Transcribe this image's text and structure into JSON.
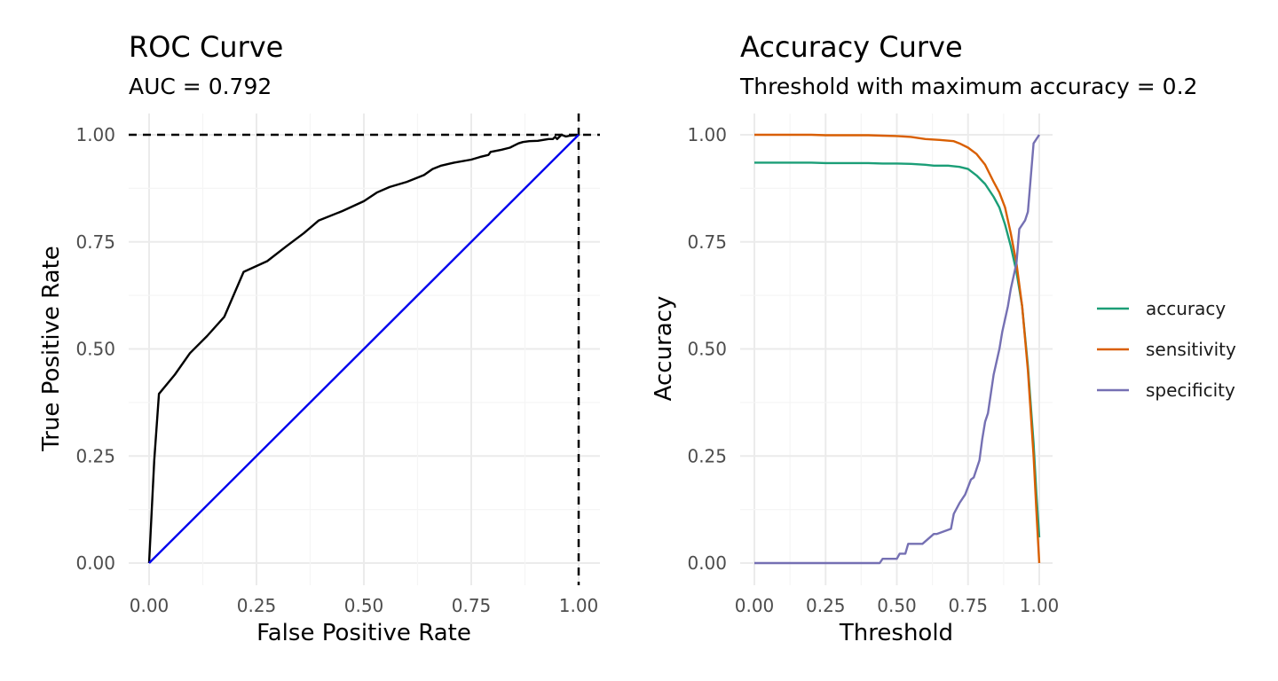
{
  "chart_data": [
    {
      "type": "line",
      "title": "ROC Curve",
      "subtitle": "AUC = 0.792",
      "xlabel": "False Positive Rate",
      "ylabel": "True Positive Rate",
      "xlim": [
        0,
        1
      ],
      "ylim": [
        0,
        1
      ],
      "x_ticks": [
        "0.00",
        "0.25",
        "0.50",
        "0.75",
        "1.00"
      ],
      "y_ticks": [
        "0.00",
        "0.25",
        "0.50",
        "0.75",
        "1.00"
      ],
      "grid": true,
      "reference_lines": {
        "hline_y": 1.0,
        "vline_x": 1.0,
        "style": "dashed",
        "color": "#000000"
      },
      "series": [
        {
          "color": "#000000",
          "x": [
            0,
            0.012,
            0.023,
            0.06,
            0.095,
            0.135,
            0.175,
            0.22,
            0.275,
            0.32,
            0.36,
            0.395,
            0.45,
            0.5,
            0.53,
            0.56,
            0.6,
            0.64,
            0.66,
            0.68,
            0.71,
            0.75,
            0.77,
            0.79,
            0.795,
            0.82,
            0.84,
            0.85,
            0.86,
            0.87,
            0.885,
            0.905,
            0.93,
            0.94,
            0.945,
            0.95,
            0.96,
            0.97,
            0.98,
            1.0
          ],
          "y": [
            0,
            0.24,
            0.395,
            0.44,
            0.49,
            0.53,
            0.575,
            0.68,
            0.705,
            0.74,
            0.77,
            0.8,
            0.822,
            0.845,
            0.865,
            0.878,
            0.89,
            0.906,
            0.92,
            0.928,
            0.935,
            0.942,
            0.948,
            0.953,
            0.96,
            0.965,
            0.97,
            0.975,
            0.98,
            0.983,
            0.985,
            0.986,
            0.99,
            0.99,
            0.995,
            0.99,
            1.0,
            0.996,
            0.998,
            1.0
          ]
        },
        {
          "color": "#0000ee",
          "x": [
            0,
            1
          ],
          "y": [
            0,
            1
          ]
        }
      ]
    },
    {
      "type": "line",
      "title": "Accuracy Curve",
      "subtitle": "Threshold with maximum accuracy = 0.2",
      "xlabel": "Threshold",
      "ylabel": "Accuracy",
      "xlim": [
        0,
        1
      ],
      "ylim": [
        0,
        1
      ],
      "x_ticks": [
        "0.00",
        "0.25",
        "0.50",
        "0.75",
        "1.00"
      ],
      "y_ticks": [
        "0.00",
        "0.25",
        "0.50",
        "0.75",
        "1.00"
      ],
      "grid": true,
      "legend_position": "right",
      "series": [
        {
          "name": "accuracy",
          "color": "#1b9e77",
          "x": [
            0,
            0.2,
            0.25,
            0.4,
            0.45,
            0.5,
            0.55,
            0.6,
            0.63,
            0.68,
            0.72,
            0.75,
            0.78,
            0.81,
            0.84,
            0.86,
            0.88,
            0.9,
            0.92,
            0.94,
            0.96,
            0.98,
            0.99,
            1.0
          ],
          "y": [
            0.935,
            0.935,
            0.934,
            0.934,
            0.933,
            0.933,
            0.932,
            0.93,
            0.928,
            0.928,
            0.925,
            0.92,
            0.905,
            0.885,
            0.855,
            0.83,
            0.79,
            0.74,
            0.68,
            0.6,
            0.46,
            0.28,
            0.16,
            0.06
          ]
        },
        {
          "name": "sensitivity",
          "color": "#d95f02",
          "x": [
            0,
            0.2,
            0.25,
            0.4,
            0.45,
            0.5,
            0.55,
            0.6,
            0.65,
            0.7,
            0.72,
            0.75,
            0.78,
            0.81,
            0.84,
            0.86,
            0.88,
            0.9,
            0.92,
            0.94,
            0.96,
            0.98,
            0.99,
            1.0
          ],
          "y": [
            1.0,
            1.0,
            0.999,
            0.999,
            0.998,
            0.997,
            0.995,
            0.99,
            0.988,
            0.985,
            0.98,
            0.97,
            0.955,
            0.93,
            0.89,
            0.865,
            0.83,
            0.77,
            0.7,
            0.6,
            0.45,
            0.25,
            0.12,
            0.0
          ]
        },
        {
          "name": "specificity",
          "color": "#7570b3",
          "x": [
            0,
            0.44,
            0.45,
            0.5,
            0.51,
            0.53,
            0.54,
            0.58,
            0.59,
            0.63,
            0.64,
            0.69,
            0.7,
            0.72,
            0.74,
            0.76,
            0.77,
            0.79,
            0.8,
            0.81,
            0.82,
            0.84,
            0.86,
            0.87,
            0.89,
            0.9,
            0.92,
            0.93,
            0.95,
            0.96,
            0.97,
            0.98,
            0.99,
            1.0
          ],
          "y": [
            0.0,
            0.0,
            0.01,
            0.01,
            0.022,
            0.022,
            0.045,
            0.045,
            0.045,
            0.068,
            0.068,
            0.08,
            0.115,
            0.14,
            0.16,
            0.195,
            0.2,
            0.24,
            0.29,
            0.33,
            0.35,
            0.44,
            0.5,
            0.54,
            0.6,
            0.64,
            0.7,
            0.78,
            0.8,
            0.82,
            0.9,
            0.98,
            0.99,
            1.0
          ]
        }
      ]
    }
  ]
}
